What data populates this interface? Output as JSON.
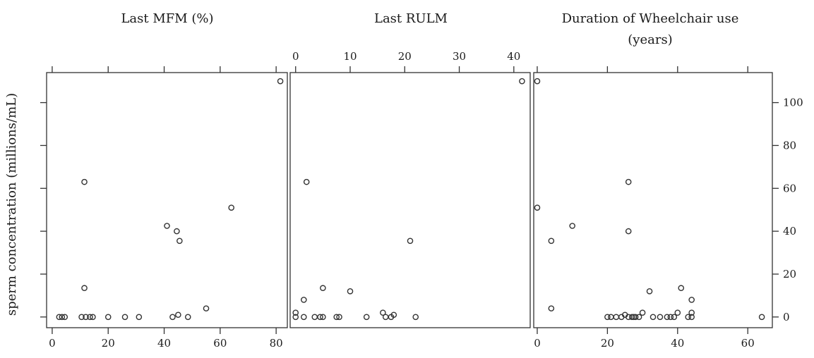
{
  "chart_data": {
    "type": "scatter",
    "ylabel": "sperm concentration (millions/mL)",
    "ylim": [
      -5,
      114
    ],
    "yticks": [
      0,
      20,
      40,
      60,
      80,
      100
    ],
    "panels": [
      {
        "title": "Last MFM (%)",
        "xlim": [
          -2,
          84
        ],
        "xticks": [
          0,
          20,
          40,
          60,
          80
        ],
        "xtick_side": "bottom",
        "points": [
          [
            2.5,
            0
          ],
          [
            3.5,
            0
          ],
          [
            4.5,
            0
          ],
          [
            10.5,
            0
          ],
          [
            12,
            0
          ],
          [
            13.5,
            0
          ],
          [
            14.5,
            0
          ],
          [
            20,
            0
          ],
          [
            26,
            0
          ],
          [
            31,
            0
          ],
          [
            43,
            0
          ],
          [
            48.5,
            0
          ],
          [
            45,
            1
          ],
          [
            55,
            4
          ],
          [
            11.5,
            13.5
          ],
          [
            11.5,
            63
          ],
          [
            41,
            42.5
          ],
          [
            44.5,
            40
          ],
          [
            45.5,
            35.5
          ],
          [
            64,
            51
          ],
          [
            81.5,
            110
          ]
        ]
      },
      {
        "title": "Last RULM",
        "xlim": [
          -1,
          43
        ],
        "xticks": [
          0,
          10,
          20,
          30,
          40
        ],
        "xtick_side": "top",
        "points": [
          [
            0,
            0
          ],
          [
            0,
            2
          ],
          [
            1.5,
            0
          ],
          [
            3.5,
            0
          ],
          [
            4.5,
            0
          ],
          [
            5,
            0
          ],
          [
            7.5,
            0
          ],
          [
            8,
            0
          ],
          [
            13,
            0
          ],
          [
            16,
            2
          ],
          [
            16.5,
            0
          ],
          [
            17.5,
            0
          ],
          [
            18,
            1
          ],
          [
            22,
            0
          ],
          [
            1.5,
            8
          ],
          [
            5,
            13.5
          ],
          [
            10,
            12
          ],
          [
            2,
            63
          ],
          [
            21,
            35.5
          ],
          [
            41.5,
            110
          ]
        ]
      },
      {
        "title": "Duration of Wheelchair use",
        "title_line2": "(years)",
        "xlim": [
          -1,
          67
        ],
        "xticks": [
          0,
          20,
          40,
          60
        ],
        "xtick_side": "bottom",
        "points": [
          [
            0,
            110
          ],
          [
            0,
            51
          ],
          [
            4,
            35.5
          ],
          [
            4,
            4
          ],
          [
            10,
            42.5
          ],
          [
            26,
            63
          ],
          [
            26,
            40
          ],
          [
            20,
            0
          ],
          [
            21,
            0
          ],
          [
            22.5,
            0
          ],
          [
            24,
            0
          ],
          [
            25,
            1
          ],
          [
            26,
            0
          ],
          [
            27,
            0
          ],
          [
            27.5,
            0
          ],
          [
            28,
            0
          ],
          [
            29,
            0
          ],
          [
            30,
            2
          ],
          [
            32,
            12
          ],
          [
            33,
            0
          ],
          [
            35,
            0
          ],
          [
            37,
            0
          ],
          [
            38,
            0
          ],
          [
            39,
            0
          ],
          [
            40,
            2
          ],
          [
            41,
            13.5
          ],
          [
            43,
            0
          ],
          [
            44,
            0
          ],
          [
            44,
            2
          ],
          [
            44,
            8
          ],
          [
            64,
            0
          ]
        ]
      }
    ]
  }
}
